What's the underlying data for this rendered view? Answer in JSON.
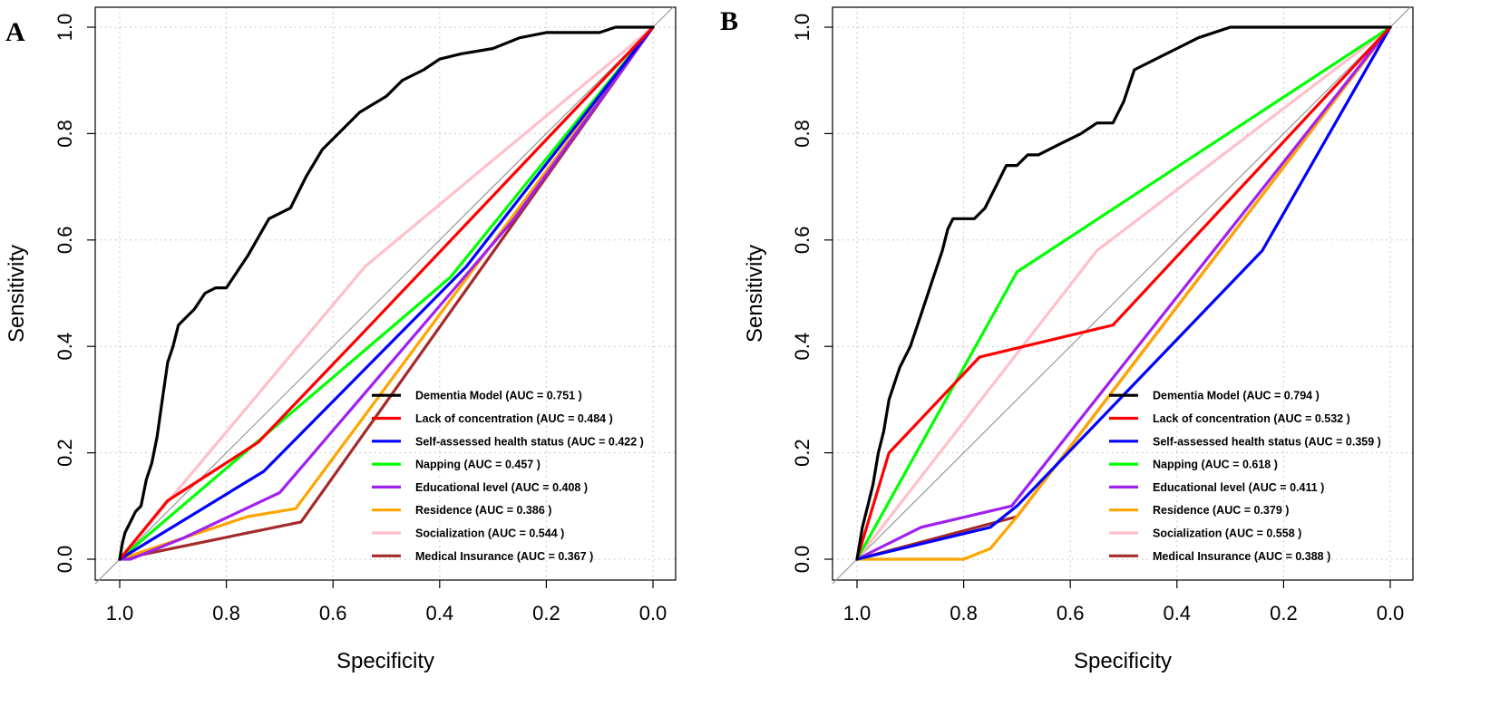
{
  "chart_data": [
    {
      "type": "line",
      "panel": "A",
      "xlabel": "Specificity",
      "ylabel": "Sensitivity",
      "x_reversed": true,
      "xlim": [
        1.0,
        0.0
      ],
      "ylim": [
        0.0,
        1.0
      ],
      "xticks": [
        "1.0",
        "0.8",
        "0.6",
        "0.4",
        "0.2",
        "0.0"
      ],
      "yticks": [
        "0.0",
        "0.2",
        "0.4",
        "0.6",
        "0.8",
        "1.0"
      ],
      "grid": true,
      "legend_position": "bottom-right",
      "series": [
        {
          "name": "Dementia Model (AUC = 0.751 )",
          "color": "#000000",
          "spec": [
            1.0,
            0.995,
            0.99,
            0.98,
            0.97,
            0.96,
            0.95,
            0.94,
            0.93,
            0.92,
            0.91,
            0.9,
            0.89,
            0.88,
            0.86,
            0.84,
            0.82,
            0.8,
            0.76,
            0.72,
            0.68,
            0.65,
            0.62,
            0.6,
            0.58,
            0.55,
            0.5,
            0.47,
            0.43,
            0.4,
            0.36,
            0.3,
            0.25,
            0.2,
            0.15,
            0.1,
            0.07,
            0.0
          ],
          "sens": [
            0.0,
            0.03,
            0.05,
            0.07,
            0.09,
            0.1,
            0.15,
            0.18,
            0.23,
            0.3,
            0.37,
            0.4,
            0.44,
            0.45,
            0.47,
            0.5,
            0.51,
            0.51,
            0.57,
            0.64,
            0.66,
            0.72,
            0.77,
            0.79,
            0.81,
            0.84,
            0.87,
            0.9,
            0.92,
            0.94,
            0.95,
            0.96,
            0.98,
            0.99,
            0.99,
            0.99,
            1.0,
            1.0
          ]
        },
        {
          "name": "Lack of concentration (AUC = 0.484 )",
          "color": "#ff0000",
          "spec": [
            1.0,
            0.91,
            0.74,
            0.53,
            0.0
          ],
          "sens": [
            0.0,
            0.11,
            0.22,
            0.44,
            1.0
          ]
        },
        {
          "name": "Self-assessed health status (AUC = 0.422 )",
          "color": "#0000ff",
          "spec": [
            1.0,
            0.73,
            0.35,
            0.0
          ],
          "sens": [
            0.0,
            0.165,
            0.55,
            1.0
          ]
        },
        {
          "name": "Napping (AUC = 0.457 )",
          "color": "#00ff00",
          "spec": [
            1.0,
            0.38,
            0.0
          ],
          "sens": [
            0.0,
            0.53,
            1.0
          ]
        },
        {
          "name": "Educational level (AUC = 0.408 )",
          "color": "#a020f0",
          "spec": [
            1.0,
            0.98,
            0.88,
            0.7,
            0.26,
            0.0
          ],
          "sens": [
            0.0,
            0.0,
            0.04,
            0.125,
            0.64,
            1.0
          ]
        },
        {
          "name": "Residence (AUC = 0.386 )",
          "color": "#ffa500",
          "spec": [
            1.0,
            0.76,
            0.67,
            0.0
          ],
          "sens": [
            0.0,
            0.08,
            0.095,
            1.0
          ]
        },
        {
          "name": "Socialization (AUC = 0.544 )",
          "color": "#ffc0cb",
          "spec": [
            1.0,
            0.54,
            0.0
          ],
          "sens": [
            0.0,
            0.55,
            1.0
          ]
        },
        {
          "name": "Medical Insurance (AUC = 0.367 )",
          "color": "#a52a2a",
          "spec": [
            1.0,
            0.66,
            0.0
          ],
          "sens": [
            0.0,
            0.07,
            1.0
          ]
        }
      ]
    },
    {
      "type": "line",
      "panel": "B",
      "xlabel": "Specificity",
      "ylabel": "Sensitivity",
      "x_reversed": true,
      "xlim": [
        1.0,
        0.0
      ],
      "ylim": [
        0.0,
        1.0
      ],
      "xticks": [
        "1.0",
        "0.8",
        "0.6",
        "0.4",
        "0.2",
        "0.0"
      ],
      "yticks": [
        "0.0",
        "0.2",
        "0.4",
        "0.6",
        "0.8",
        "1.0"
      ],
      "grid": true,
      "legend_position": "bottom-right",
      "series": [
        {
          "name": "Dementia Model (AUC = 0.794 )",
          "color": "#000000",
          "spec": [
            1.0,
            0.99,
            0.98,
            0.97,
            0.96,
            0.95,
            0.94,
            0.92,
            0.9,
            0.88,
            0.86,
            0.84,
            0.83,
            0.82,
            0.8,
            0.78,
            0.76,
            0.74,
            0.72,
            0.7,
            0.68,
            0.66,
            0.62,
            0.58,
            0.55,
            0.52,
            0.5,
            0.48,
            0.44,
            0.4,
            0.36,
            0.3,
            0.0
          ],
          "sens": [
            0.0,
            0.06,
            0.1,
            0.14,
            0.2,
            0.24,
            0.3,
            0.36,
            0.4,
            0.46,
            0.52,
            0.58,
            0.62,
            0.64,
            0.64,
            0.64,
            0.66,
            0.7,
            0.74,
            0.74,
            0.76,
            0.76,
            0.78,
            0.8,
            0.82,
            0.82,
            0.86,
            0.92,
            0.94,
            0.96,
            0.98,
            1.0,
            1.0
          ]
        },
        {
          "name": "Lack of concentration (AUC = 0.532 )",
          "color": "#ff0000",
          "spec": [
            1.0,
            0.94,
            0.77,
            0.52,
            0.0
          ],
          "sens": [
            0.0,
            0.2,
            0.38,
            0.44,
            1.0
          ]
        },
        {
          "name": "Self-assessed health status (AUC = 0.359 )",
          "color": "#0000ff",
          "spec": [
            1.0,
            0.75,
            0.7,
            0.24,
            0.0
          ],
          "sens": [
            0.0,
            0.06,
            0.1,
            0.58,
            1.0
          ]
        },
        {
          "name": "Napping (AUC = 0.618 )",
          "color": "#00ff00",
          "spec": [
            1.0,
            0.7,
            0.0
          ],
          "sens": [
            0.0,
            0.54,
            1.0
          ]
        },
        {
          "name": "Educational level (AUC = 0.411 )",
          "color": "#a020f0",
          "spec": [
            1.0,
            0.88,
            0.71,
            0.0
          ],
          "sens": [
            0.0,
            0.06,
            0.1,
            1.0
          ]
        },
        {
          "name": "Residence (AUC = 0.379 )",
          "color": "#ffa500",
          "spec": [
            1.0,
            0.8,
            0.75,
            0.7,
            0.0
          ],
          "sens": [
            0.0,
            0.0,
            0.02,
            0.08,
            1.0
          ]
        },
        {
          "name": "Socialization (AUC = 0.558 )",
          "color": "#ffc0cb",
          "spec": [
            1.0,
            0.55,
            0.0
          ],
          "sens": [
            0.0,
            0.58,
            1.0
          ]
        },
        {
          "name": "Medical Insurance (AUC = 0.388 )",
          "color": "#a52a2a",
          "spec": [
            1.0,
            0.7,
            0.0
          ],
          "sens": [
            0.0,
            0.08,
            1.0
          ]
        }
      ]
    }
  ],
  "style": {
    "diagonal_color": "#999999",
    "grid_color": "#bbbbbb",
    "axis_color": "#000000"
  }
}
